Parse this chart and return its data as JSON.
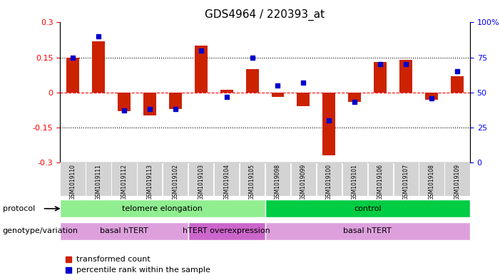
{
  "title": "GDS4964 / 220393_at",
  "samples": [
    "GSM1019110",
    "GSM1019111",
    "GSM1019112",
    "GSM1019113",
    "GSM1019102",
    "GSM1019103",
    "GSM1019104",
    "GSM1019105",
    "GSM1019098",
    "GSM1019099",
    "GSM1019100",
    "GSM1019101",
    "GSM1019106",
    "GSM1019107",
    "GSM1019108",
    "GSM1019109"
  ],
  "transformed_count": [
    0.15,
    0.22,
    -0.08,
    -0.1,
    -0.07,
    0.2,
    0.01,
    0.1,
    -0.02,
    -0.06,
    -0.27,
    -0.04,
    0.13,
    0.14,
    -0.03,
    0.07
  ],
  "percentile_rank": [
    75,
    90,
    37,
    38,
    38,
    80,
    47,
    75,
    55,
    57,
    30,
    43,
    70,
    70,
    46,
    65
  ],
  "ylim_left": [
    -0.3,
    0.3
  ],
  "ylim_right": [
    0,
    100
  ],
  "yticks_left": [
    -0.3,
    -0.15,
    0.0,
    0.15,
    0.3
  ],
  "yticks_right": [
    0,
    25,
    50,
    75,
    100
  ],
  "ytick_labels_left": [
    "-0.3",
    "-0.15",
    "0",
    "0.15",
    "0.3"
  ],
  "ytick_labels_right": [
    "0",
    "25",
    "50",
    "75",
    "100%"
  ],
  "hline_y": [
    0.15,
    0.0,
    -0.15
  ],
  "hline_styles": [
    "dotted",
    "dashed_red",
    "dotted"
  ],
  "protocol_groups": [
    {
      "label": "telomere elongation",
      "start": 0,
      "end": 8,
      "color": "#90EE90"
    },
    {
      "label": "control",
      "start": 8,
      "end": 16,
      "color": "#00CC44"
    }
  ],
  "genotype_groups": [
    {
      "label": "basal hTERT",
      "start": 0,
      "end": 5,
      "color": "#DDA0DD"
    },
    {
      "label": "hTERT overexpression",
      "start": 5,
      "end": 8,
      "color": "#CC66CC"
    },
    {
      "label": "basal hTERT",
      "start": 8,
      "end": 16,
      "color": "#DDA0DD"
    }
  ],
  "bar_color": "#CC2200",
  "dot_color": "#0000CC",
  "bg_color": "#FFFFFF",
  "label_bg": "#D3D3D3",
  "legend_items": [
    {
      "color": "#CC2200",
      "label": "transformed count"
    },
    {
      "color": "#0000CC",
      "label": "percentile rank within the sample"
    }
  ]
}
